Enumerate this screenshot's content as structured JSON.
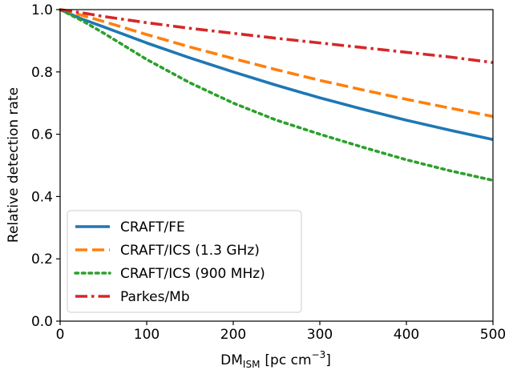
{
  "chart_data": {
    "type": "line",
    "title": "",
    "xlabel": "DM",
    "xlabel_subscript": "ISM",
    "xlabel_units": "[pc cm",
    "xlabel_units_exp": "−3",
    "xlabel_units_close": "]",
    "ylabel": "Relative detection rate",
    "xlim": [
      0,
      500
    ],
    "ylim": [
      0.0,
      1.0
    ],
    "xticks": [
      0,
      100,
      200,
      300,
      400,
      500
    ],
    "xtick_labels": [
      "0",
      "100",
      "200",
      "300",
      "400",
      "500"
    ],
    "yticks": [
      0.0,
      0.2,
      0.4,
      0.6,
      0.8,
      1.0
    ],
    "ytick_labels": [
      "0.0",
      "0.2",
      "0.4",
      "0.6",
      "0.8",
      "1.0"
    ],
    "grid": false,
    "legend_position": "lower-left",
    "x": [
      0,
      25,
      50,
      100,
      150,
      200,
      250,
      300,
      350,
      400,
      450,
      500
    ],
    "series": [
      {
        "name": "CRAFT/FE",
        "color": "#1f77b4",
        "style": "solid",
        "values": [
          1.0,
          0.97,
          0.945,
          0.893,
          0.845,
          0.8,
          0.757,
          0.717,
          0.68,
          0.645,
          0.613,
          0.583
        ]
      },
      {
        "name": "CRAFT/ICS (1.3 GHz)",
        "color": "#ff7f0e",
        "style": "dashed",
        "values": [
          1.0,
          0.982,
          0.962,
          0.92,
          0.88,
          0.843,
          0.807,
          0.773,
          0.742,
          0.712,
          0.684,
          0.657
        ]
      },
      {
        "name": "CRAFT/ICS (900 MHz)",
        "color": "#2ca02c",
        "style": "dotted",
        "values": [
          1.0,
          0.965,
          0.925,
          0.84,
          0.765,
          0.7,
          0.645,
          0.6,
          0.558,
          0.518,
          0.483,
          0.452
        ]
      },
      {
        "name": "Parkes/Mb",
        "color": "#d62728",
        "style": "dashdot",
        "values": [
          1.0,
          0.99,
          0.978,
          0.958,
          0.94,
          0.924,
          0.908,
          0.893,
          0.878,
          0.863,
          0.848,
          0.83
        ]
      }
    ]
  }
}
